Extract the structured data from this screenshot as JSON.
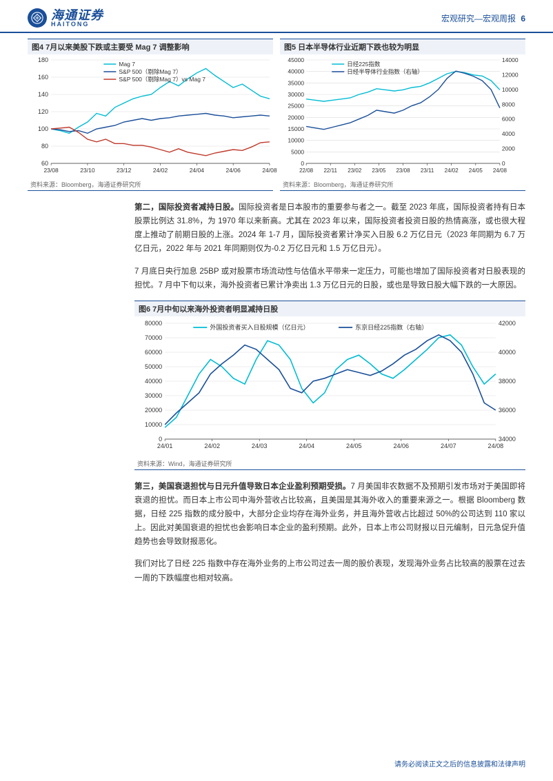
{
  "header": {
    "brand_cn": "海通证券",
    "brand_en": "HAITONG",
    "breadcrumb": "宏观研究—宏观周报",
    "page_number": "6"
  },
  "chart4": {
    "title": "图4  7月以来美股下跌或主要受 Mag 7  调整影响",
    "type": "line",
    "source": "资料来源：Bloomberg，海通证券研究所",
    "legend": [
      "Mag 7",
      "S&P 500（剔除Mag 7）",
      "S&P 500（剔除Mag 7）vs Mag 7"
    ],
    "colors": [
      "#00bcd4",
      "#1a4f99",
      "#c0392b"
    ],
    "bg": "#ffffff",
    "grid_color": "#d9d9d9",
    "axis_color": "#333333",
    "x_labels": [
      "23/08",
      "23/10",
      "23/12",
      "24/02",
      "24/04",
      "24/06",
      "24/08"
    ],
    "y_ticks": [
      60,
      80,
      100,
      120,
      140,
      160,
      180
    ],
    "series": {
      "mag7": [
        100,
        98,
        95,
        102,
        108,
        118,
        115,
        125,
        130,
        135,
        138,
        140,
        148,
        155,
        150,
        158,
        165,
        170,
        162,
        155,
        148,
        152,
        145,
        138,
        135
      ],
      "sp500ex": [
        100,
        99,
        97,
        98,
        95,
        100,
        102,
        104,
        108,
        110,
        112,
        110,
        112,
        113,
        115,
        116,
        117,
        118,
        116,
        115,
        113,
        114,
        115,
        116,
        115
      ],
      "ratio": [
        100,
        101,
        102,
        96,
        88,
        85,
        88,
        83,
        83,
        81,
        81,
        79,
        76,
        73,
        77,
        73,
        71,
        69,
        72,
        74,
        76,
        75,
        79,
        84,
        85
      ]
    }
  },
  "chart5": {
    "title": "图5  日本半导体行业近期下跌也较为明显",
    "type": "line",
    "source": "资料来源：Bloomberg，海通证券研究所",
    "legend": [
      "日经225指数",
      "日经半导体行业指数（右轴）"
    ],
    "colors": [
      "#00bcd4",
      "#1a4f99"
    ],
    "bg": "#ffffff",
    "grid_color": "#d9d9d9",
    "axis_color": "#333333",
    "x_labels": [
      "22/08",
      "22/11",
      "23/02",
      "23/05",
      "23/08",
      "23/11",
      "24/02",
      "24/05",
      "24/08"
    ],
    "y_left_ticks": [
      0,
      5000,
      10000,
      15000,
      20000,
      25000,
      30000,
      35000,
      40000,
      45000
    ],
    "y_right_ticks": [
      0,
      2000,
      4000,
      6000,
      8000,
      10000,
      12000,
      14000
    ],
    "series": {
      "nikkei225": [
        28000,
        27500,
        27000,
        27500,
        28000,
        28500,
        30000,
        31000,
        32500,
        32000,
        31500,
        32000,
        33000,
        33500,
        35000,
        37000,
        39000,
        40000,
        39500,
        38500,
        38000,
        36000,
        32000
      ],
      "semi": [
        5000,
        4800,
        4600,
        4900,
        5200,
        5500,
        6000,
        6500,
        7200,
        7000,
        6800,
        7200,
        7800,
        8200,
        9000,
        10000,
        11500,
        12500,
        12200,
        11800,
        11200,
        10000,
        7500
      ]
    }
  },
  "para1": {
    "lead": "第二，国际投资者减持日股。",
    "text": "国际投资者是日本股市的重要参与者之一。截至 2023 年底，国际投资者持有日本股票比例达 31.8%，为 1970 年以来新高。尤其在 2023 年以来，国际投资者投资日股的热情高涨，或也很大程度上推动了前期日股的上涨。2024 年 1-7 月，国际投资者累计净买入日股 6.2 万亿日元（2023 年同期为 6.7 万亿日元，2022 年与 2021 年同期则仅为-0.2 万亿日元和 1.5 万亿日元）。"
  },
  "para2": {
    "text": "7 月底日央行加息 25BP 或对股票市场流动性与估值水平带来一定压力，可能也增加了国际投资者对日股表现的担忧。7 月中下旬以来，海外投资者已累计净卖出 1.3 万亿日元的日股，或也是导致日股大幅下跌的一大原因。"
  },
  "chart6": {
    "title": "图6  7月中旬以来海外投资者明显减持日股",
    "type": "line",
    "source": "资料来源：Wind，海通证券研究所",
    "legend": [
      "外国投资者买入日股规模（亿日元）",
      "东京日经225指数（右轴）"
    ],
    "colors": [
      "#00bcd4",
      "#1a4f99"
    ],
    "bg": "#ffffff",
    "grid_color": "#d9d9d9",
    "axis_color": "#333333",
    "x_labels": [
      "24/01",
      "24/02",
      "24/03",
      "24/04",
      "24/05",
      "24/06",
      "24/07",
      "24/08"
    ],
    "y_left_ticks": [
      0,
      10000,
      20000,
      30000,
      40000,
      50000,
      60000,
      70000,
      80000
    ],
    "y_right_ticks": [
      34000,
      36000,
      38000,
      40000,
      42000
    ],
    "series": {
      "foreign_buy": [
        8000,
        15000,
        30000,
        45000,
        55000,
        50000,
        42000,
        38000,
        55000,
        68000,
        65000,
        55000,
        35000,
        25000,
        32000,
        48000,
        55000,
        58000,
        52000,
        45000,
        42000,
        48000,
        55000,
        62000,
        70000,
        72000,
        65000,
        50000,
        38000,
        45000
      ],
      "nikkei": [
        35000,
        35800,
        36500,
        37200,
        38500,
        39200,
        39800,
        40500,
        40200,
        39500,
        38800,
        37500,
        37200,
        38000,
        38200,
        38500,
        38800,
        38600,
        38400,
        38700,
        39200,
        39800,
        40200,
        40800,
        41200,
        40800,
        40000,
        38500,
        36500,
        36000
      ]
    }
  },
  "para3": {
    "lead": "第三，美国衰退担忧与日元升值导致日本企业盈利预期受损。",
    "text": "7 月美国非农数据不及预期引发市场对于美国即将衰退的担忧。而日本上市公司中海外营收占比较高，且美国是其海外收入的重要来源之一。根据 Bloomberg 数据，日经 225 指数的成分股中，大部分企业均存在海外业务，并且海外营收占比超过 50%的公司达到 110 家以上。因此对美国衰退的担忧也会影响日本企业的盈利预期。此外，日本上市公司财报以日元编制，日元急促升值趋势也会导致财报恶化。"
  },
  "para4": {
    "text": "我们对比了日经 225 指数中存在海外业务的上市公司过去一周的股价表现，发现海外业务占比较高的股票在过去一周的下跌幅度也相对较高。"
  },
  "footer": {
    "text": "请务必阅读正文之后的信息披露和法律声明"
  }
}
